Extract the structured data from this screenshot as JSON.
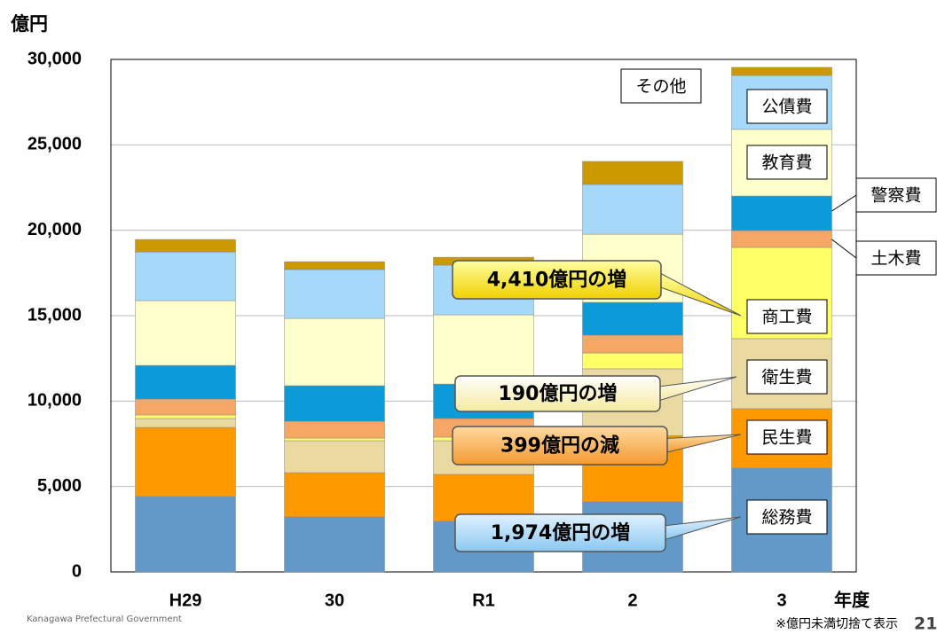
{
  "chart_data": {
    "type": "bar",
    "stacked": true,
    "unit": "億円",
    "x_label": "年度",
    "note": "※億円未満切捨て表示",
    "page_number": "21",
    "footer": "Kanagawa Prefectural Government",
    "categories": [
      "H29",
      "30",
      "R1",
      "2",
      "3"
    ],
    "series": [
      {
        "name": "総務費",
        "color": "#6399c9",
        "values": [
          4410,
          3220,
          2960,
          4100,
          6074
        ]
      },
      {
        "name": "民生費",
        "color": "#ff9900",
        "values": [
          4050,
          2590,
          2750,
          3880,
          3481
        ]
      },
      {
        "name": "衛生費",
        "color": "#ead9a0",
        "values": [
          520,
          1870,
          1970,
          3910,
          4100
        ]
      },
      {
        "name": "商工費",
        "color": "#ffff66",
        "values": [
          210,
          160,
          210,
          930,
          5340
        ]
      },
      {
        "name": "土木費",
        "color": "#f6a665",
        "values": [
          930,
          980,
          1090,
          1040,
          990
        ]
      },
      {
        "name": "警察費",
        "color": "#0d9ad8",
        "values": [
          1970,
          2080,
          2020,
          1920,
          2020
        ]
      },
      {
        "name": "教育費",
        "color": "#ffffcc",
        "values": [
          3790,
          3940,
          4050,
          3990,
          3900
        ]
      },
      {
        "name": "公債費",
        "color": "#a6d8fa",
        "values": [
          2850,
          2860,
          2910,
          2910,
          3160
        ]
      },
      {
        "name": "その他",
        "color": "#cc9900",
        "values": [
          730,
          460,
          460,
          1350,
          470
        ]
      }
    ],
    "annotations": [
      "4,410億円の増",
      "190億円の増",
      "399億円の減",
      "1,974億円の増"
    ],
    "ylim": [
      0,
      30000
    ],
    "yticks": [
      0,
      {
        "value": 5000,
        "label": "5,000"
      },
      {
        "value": 10000,
        "label": "10,000"
      },
      {
        "value": 15000,
        "label": "15,000"
      },
      {
        "value": 20000,
        "label": "20,000"
      },
      {
        "value": 25000,
        "label": "25,000"
      },
      {
        "value": 30000,
        "label": "30,000"
      }
    ],
    "grid": true
  }
}
